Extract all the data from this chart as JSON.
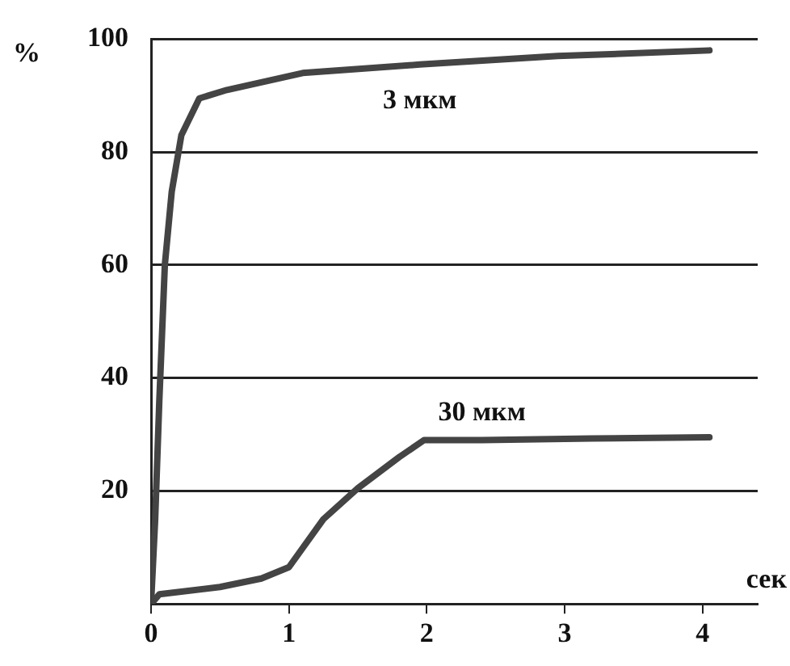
{
  "chart_data": {
    "type": "line",
    "xlabel": "сек",
    "ylabel": "%",
    "xlim": [
      0,
      4.4
    ],
    "ylim": [
      0,
      100
    ],
    "xticks": [
      0,
      1,
      2,
      3,
      4
    ],
    "yticks": [
      {
        "value": 0,
        "label": null
      },
      20,
      40,
      60,
      80,
      100
    ],
    "grid": "y",
    "legend": false,
    "marker": "none",
    "line_style": "solid",
    "series": [
      {
        "name": "3 мкм",
        "color": "#444444",
        "x": [
          0,
          0.03,
          0.06,
          0.1,
          0.15,
          0.22,
          0.35,
          0.55,
          1.1,
          1.95,
          2.95,
          4.05
        ],
        "values": [
          0,
          15,
          36,
          60,
          73,
          83,
          89.5,
          91,
          94,
          95.5,
          97,
          98
        ]
      },
      {
        "name": "30 мкм",
        "color": "#444444",
        "x": [
          0,
          0.06,
          0.5,
          0.8,
          1.0,
          1.25,
          1.5,
          1.8,
          1.98,
          2.4,
          3.2,
          4.05
        ],
        "values": [
          0,
          1.7,
          3,
          4.5,
          6.5,
          15,
          20.5,
          26,
          29,
          29,
          29.3,
          29.5
        ]
      }
    ]
  }
}
